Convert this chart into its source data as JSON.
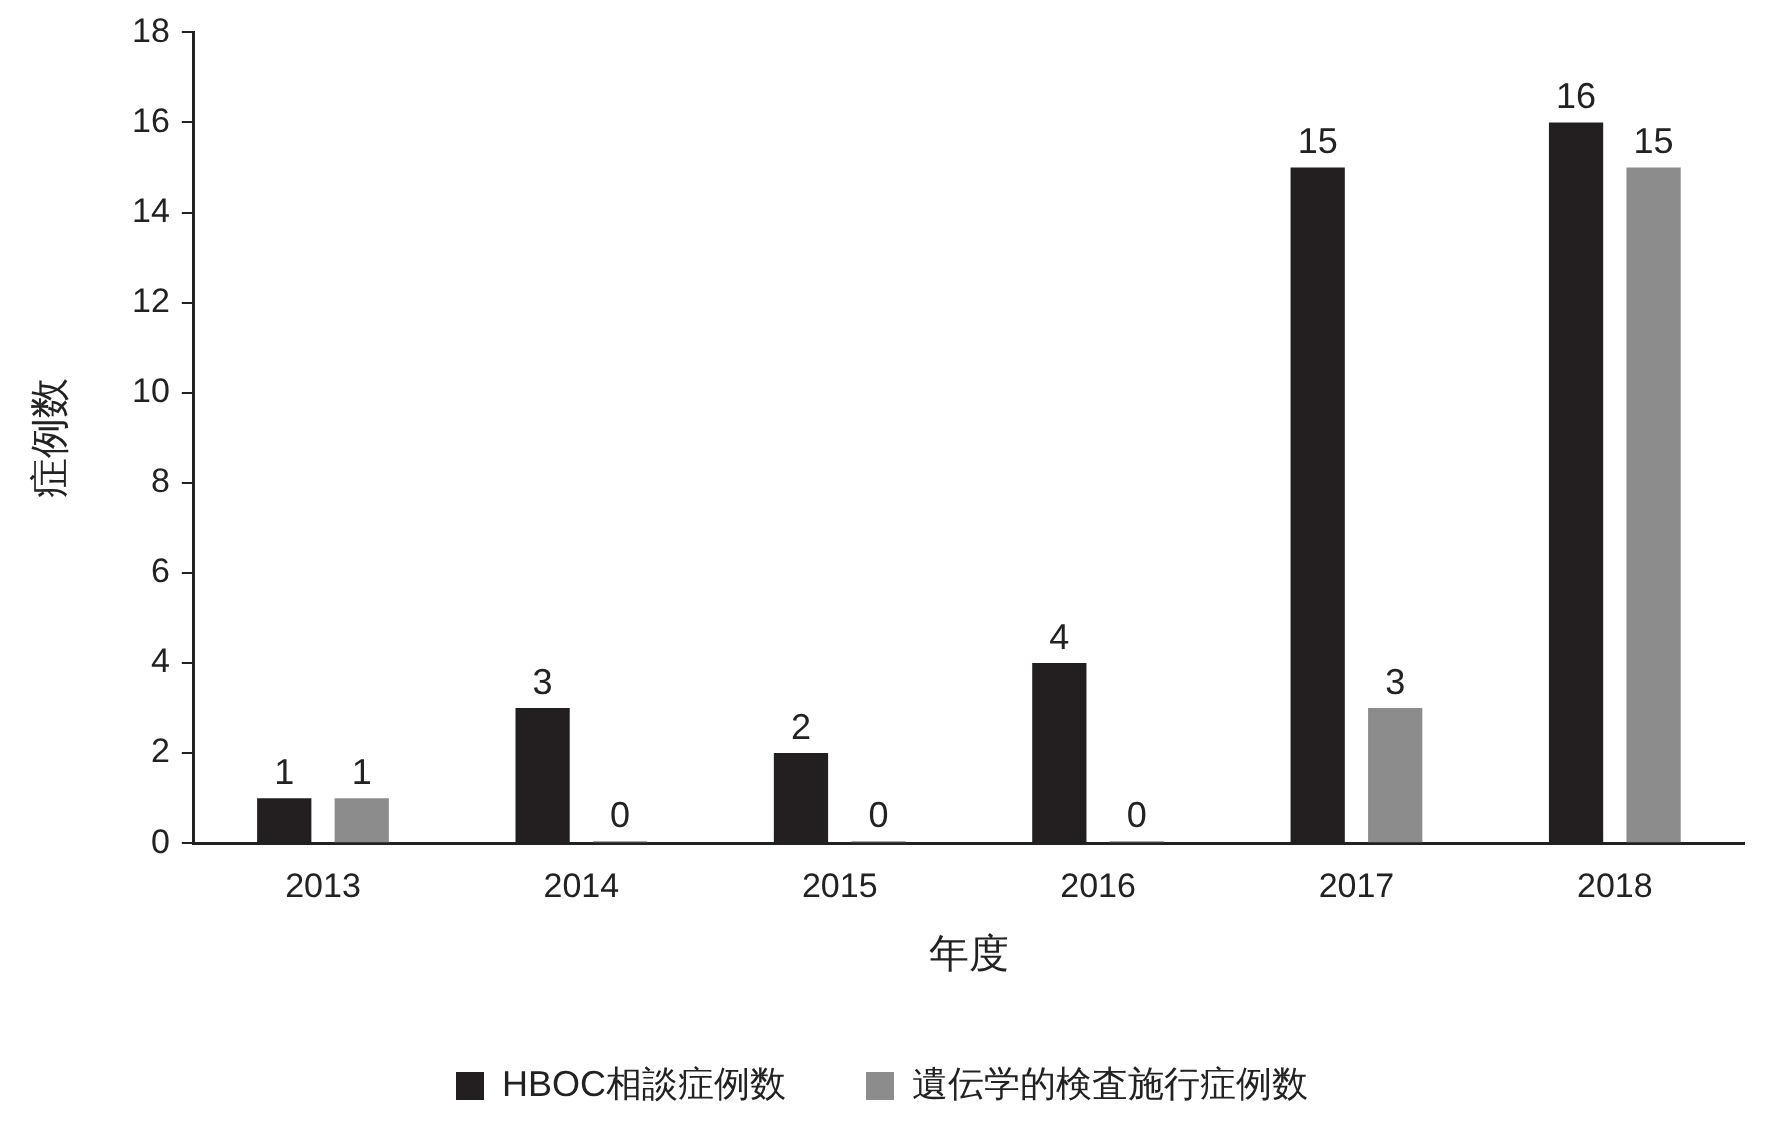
{
  "chart_data": {
    "type": "bar",
    "xlabel": "年度",
    "ylabel": "症例数",
    "categories": [
      "2013",
      "2014",
      "2015",
      "2016",
      "2017",
      "2018"
    ],
    "series": [
      {
        "name": "HBOC相談症例数",
        "color": "#231f20",
        "values": [
          1,
          3,
          2,
          4,
          15,
          16
        ]
      },
      {
        "name": "遺伝学的検査施行症例数",
        "color": "#8c8c8c",
        "values": [
          1,
          0,
          0,
          0,
          3,
          15
        ]
      }
    ],
    "ylim": [
      0,
      18
    ],
    "yticks": [
      0,
      2,
      4,
      6,
      8,
      10,
      12,
      14,
      16,
      18
    ],
    "grid": false,
    "legend": "bottom",
    "data_labels": true
  }
}
